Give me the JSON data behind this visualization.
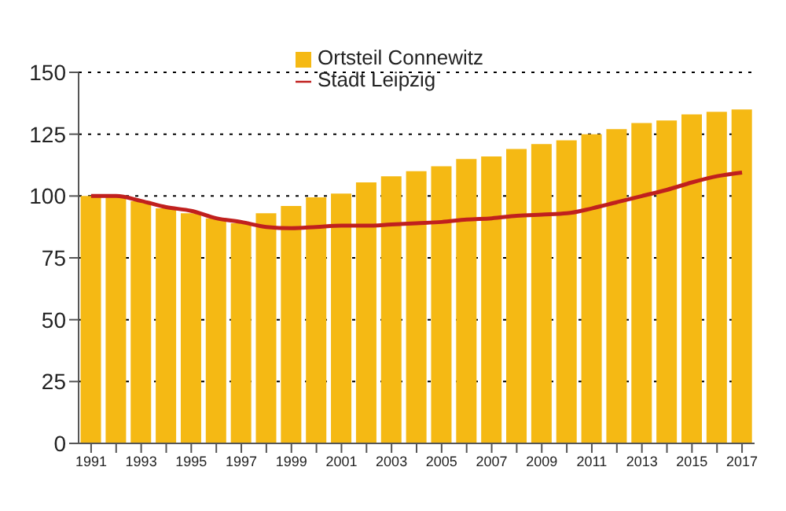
{
  "chart_data": {
    "type": "bar",
    "categories": [
      "1991",
      null,
      "1993",
      null,
      "1995",
      null,
      "1997",
      null,
      "1999",
      null,
      "2001",
      null,
      "2003",
      null,
      "2005",
      null,
      "2007",
      null,
      "2009",
      null,
      "2011",
      null,
      "2013",
      null,
      "2015",
      null,
      "2017"
    ],
    "series": [
      {
        "name": "Ortsteil Connewitz",
        "color": "#f5b914",
        "values": [
          100,
          99.5,
          98,
          95,
          93,
          91,
          89,
          93,
          96,
          99.5,
          101,
          105.5,
          108,
          110,
          112,
          115,
          116,
          119,
          121,
          122.5,
          125,
          127,
          129.5,
          130.5,
          133,
          134,
          135
        ]
      },
      {
        "name": "Stadt Leipzig",
        "type": "line",
        "color": "#c0201e",
        "values": [
          100,
          100,
          98,
          95.5,
          94,
          91,
          89.5,
          87.5,
          87,
          87.5,
          88,
          88,
          88.5,
          89,
          89.5,
          90.5,
          91,
          92,
          92.5,
          93,
          95,
          97.5,
          100,
          102.5,
          105.5,
          108,
          109.5
        ]
      }
    ],
    "ylim": [
      0,
      150
    ],
    "yticks": [
      0,
      25,
      50,
      75,
      100,
      125,
      150
    ],
    "grid": "y",
    "legend": "top",
    "marker": "none",
    "line_style": "solid"
  }
}
